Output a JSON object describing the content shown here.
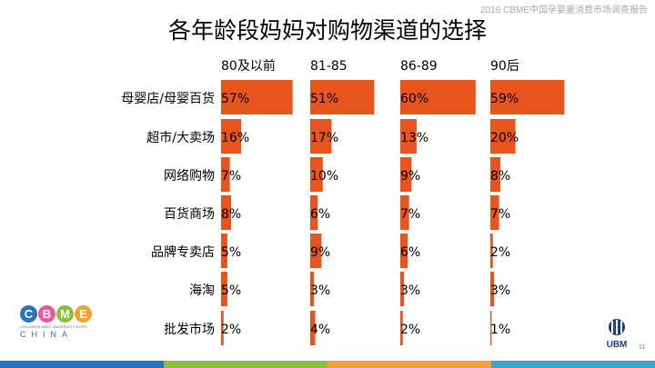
{
  "header_note": "2016 CBME中国孕婴童消费市场调查报告",
  "title": "各年龄段妈妈对购物渠道的选择",
  "colors": {
    "bar": "#e8541e",
    "footer": [
      "#2a73b8",
      "#8cbf3f",
      "#f0a32f",
      "#3aa6c9"
    ]
  },
  "chart_data": {
    "type": "bar",
    "orientation": "horizontal",
    "categories": [
      "母婴店/母婴百货",
      "超市/大卖场",
      "网络购物",
      "百货商场",
      "品牌专卖店",
      "海淘",
      "批发市场"
    ],
    "series": [
      {
        "name": "80及以前",
        "values": [
          57,
          16,
          7,
          8,
          5,
          5,
          2
        ],
        "labels": [
          "57%",
          "16%",
          "7%",
          "8%",
          "5%",
          "5%",
          "2%"
        ]
      },
      {
        "name": "81-85",
        "values": [
          51,
          17,
          10,
          6,
          9,
          3,
          4
        ],
        "labels": [
          "51%",
          "17%",
          "10%",
          "6%",
          "9%",
          "3%",
          "4%"
        ]
      },
      {
        "name": "86-89",
        "values": [
          60,
          13,
          9,
          7,
          6,
          3,
          2
        ],
        "labels": [
          "60%",
          "13%",
          "9%",
          "7%",
          "6%",
          "3%",
          "2%"
        ]
      },
      {
        "name": "90后",
        "values": [
          59,
          20,
          8,
          7,
          2,
          3,
          1
        ],
        "labels": [
          "59%",
          "20%",
          "8%",
          "7%",
          "2%",
          "3%",
          "1%"
        ]
      }
    ],
    "unit": "%"
  },
  "logos": {
    "cbme": {
      "letters": [
        "C",
        "B",
        "M",
        "E"
      ],
      "tagline": "CHILDREN BABY MATERNITY EXPO",
      "china": "CHINA"
    },
    "ubm": "UBM"
  },
  "page_number": "11"
}
